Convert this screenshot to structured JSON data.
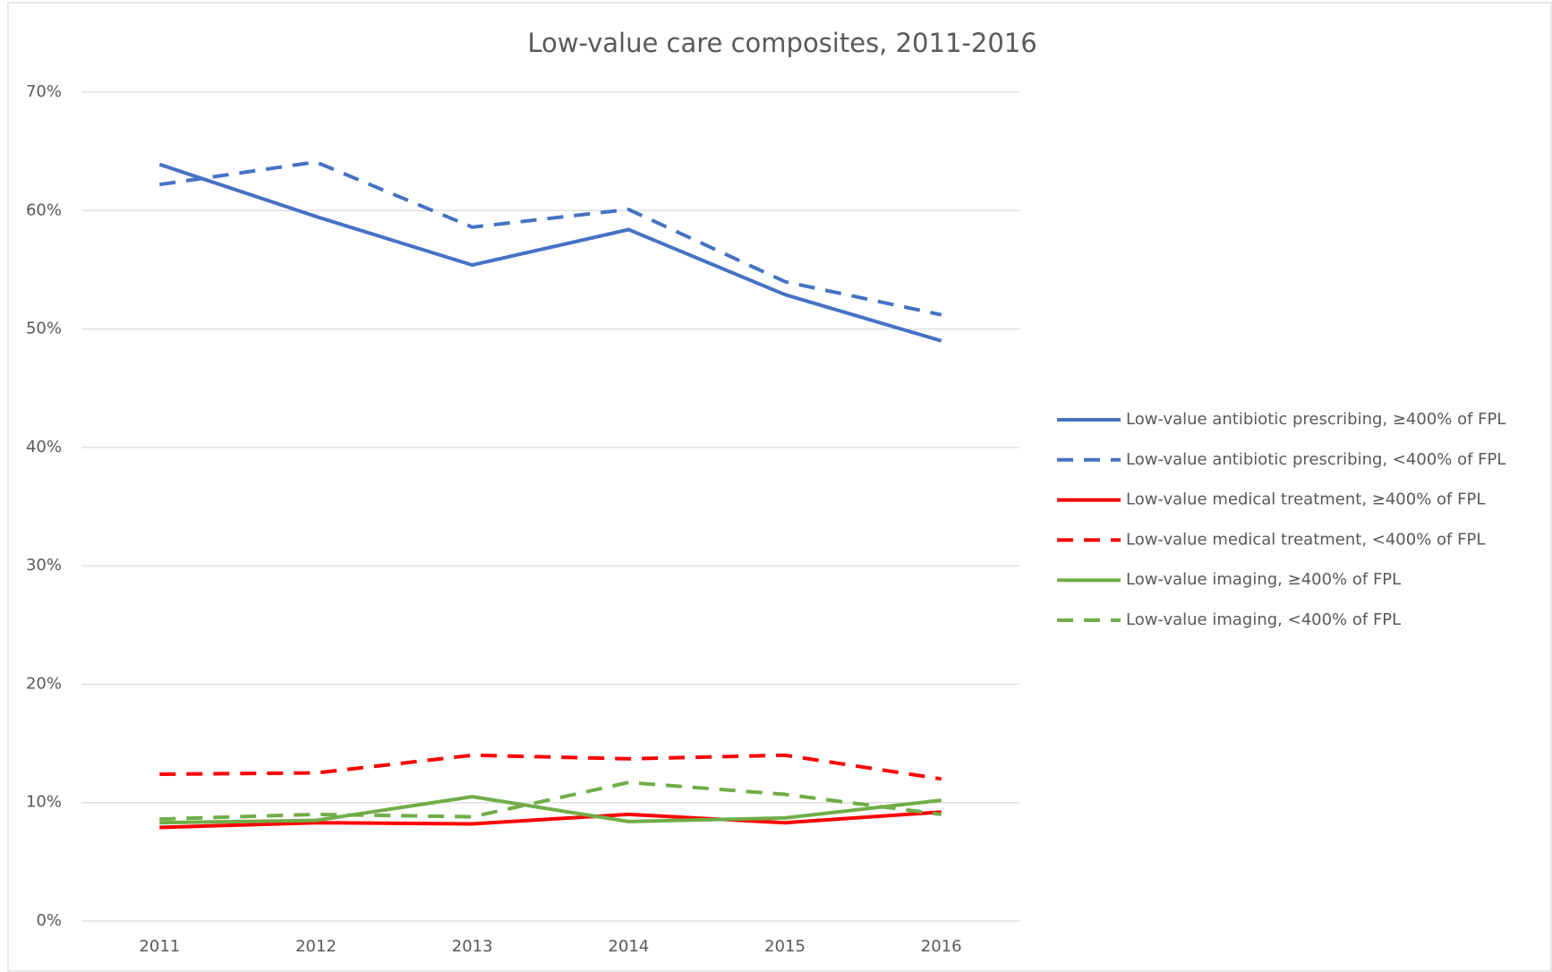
{
  "chart_data": {
    "type": "line",
    "title": "Low-value care composites, 2011-2016",
    "categories": [
      "2011",
      "2012",
      "2013",
      "2014",
      "2015",
      "2016"
    ],
    "ylim": [
      0,
      70
    ],
    "yticks": [
      {
        "value": 0,
        "label": "0%"
      },
      {
        "value": 10,
        "label": "10%"
      },
      {
        "value": 20,
        "label": "20%"
      },
      {
        "value": 30,
        "label": "30%"
      },
      {
        "value": 40,
        "label": "40%"
      },
      {
        "value": 50,
        "label": "50%"
      },
      {
        "value": 60,
        "label": "60%"
      },
      {
        "value": 70,
        "label": "70%"
      }
    ],
    "grid": true,
    "legend": "right",
    "series": [
      {
        "name": "Low-value antibiotic prescribing, ≥400% of FPL",
        "color": "#4472c4",
        "dash": false,
        "values": [
          63.9,
          59.5,
          55.4,
          58.4,
          52.9,
          49.0
        ]
      },
      {
        "name": "Low-value antibiotic prescribing, <400% of FPL",
        "color": "#4472c4",
        "dash": true,
        "values": [
          62.2,
          64.1,
          58.6,
          60.1,
          54.0,
          51.2
        ]
      },
      {
        "name": "Low-value medical treatment, ≥400% of FPL",
        "color": "#ff0000",
        "dash": false,
        "values": [
          7.9,
          8.3,
          8.2,
          9.0,
          8.3,
          9.2
        ]
      },
      {
        "name": "Low-value medical treatment, <400% of FPL",
        "color": "#ff0000",
        "dash": true,
        "values": [
          12.4,
          12.5,
          14.0,
          13.7,
          14.0,
          12.0
        ]
      },
      {
        "name": "Low-value imaging, ≥400% of FPL",
        "color": "#70ad47",
        "dash": false,
        "values": [
          8.3,
          8.5,
          10.5,
          8.4,
          8.7,
          10.2
        ]
      },
      {
        "name": "Low-value imaging, <400% of FPL",
        "color": "#70ad47",
        "dash": true,
        "values": [
          8.6,
          9.0,
          8.8,
          11.7,
          10.7,
          9.0
        ]
      }
    ]
  }
}
